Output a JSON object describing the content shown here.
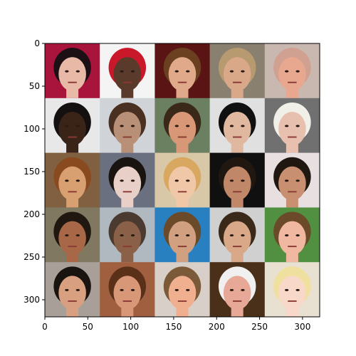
{
  "figure": {
    "background": "#ffffff",
    "axes_color": "#000000"
  },
  "axes": {
    "xlim": [
      0,
      320
    ],
    "ylim": [
      320,
      0
    ],
    "x_ticks": [
      {
        "value": 0,
        "label": "0"
      },
      {
        "value": 50,
        "label": "50"
      },
      {
        "value": 100,
        "label": "100"
      },
      {
        "value": 150,
        "label": "150"
      },
      {
        "value": 200,
        "label": "200"
      },
      {
        "value": 250,
        "label": "250"
      },
      {
        "value": 300,
        "label": "300"
      }
    ],
    "y_ticks": [
      {
        "value": 0,
        "label": "0"
      },
      {
        "value": 50,
        "label": "50"
      },
      {
        "value": 100,
        "label": "100"
      },
      {
        "value": 150,
        "label": "150"
      },
      {
        "value": 200,
        "label": "200"
      },
      {
        "value": 250,
        "label": "250"
      },
      {
        "value": 300,
        "label": "300"
      }
    ]
  },
  "image_grid": {
    "rows": 5,
    "cols": 5,
    "tile_size": 64,
    "tiles": [
      {
        "bg": "#a8143c",
        "face": "#e9b9a8",
        "hair": "#1c1014"
      },
      {
        "bg": "#f4f4f4",
        "face": "#5a3a2a",
        "hair": "#c8182a"
      },
      {
        "bg": "#5a1414",
        "face": "#e0aa8a",
        "hair": "#6a4020"
      },
      {
        "bg": "#8a8070",
        "face": "#d8a888",
        "hair": "#b89a70"
      },
      {
        "bg": "#c8b8b0",
        "face": "#e8a890",
        "hair": "#d0a090"
      },
      {
        "bg": "#e8e8e8",
        "face": "#3a2418",
        "hair": "#141010"
      },
      {
        "bg": "#d0d4d8",
        "face": "#b89078",
        "hair": "#4a3020"
      },
      {
        "bg": "#6a8060",
        "face": "#d89878",
        "hair": "#3a2818"
      },
      {
        "bg": "#e0e0e0",
        "face": "#e0b8a0",
        "hair": "#101010"
      },
      {
        "bg": "#707070",
        "face": "#e8c0b0",
        "hair": "#f0f0e8"
      },
      {
        "bg": "#806040",
        "face": "#d8a070",
        "hair": "#8a4a20"
      },
      {
        "bg": "#6a7080",
        "face": "#e8d0c8",
        "hair": "#1a1410"
      },
      {
        "bg": "#d8c8a8",
        "face": "#f0c8a8",
        "hair": "#d8a860"
      },
      {
        "bg": "#101010",
        "face": "#c08868",
        "hair": "#201810"
      },
      {
        "bg": "#e8e0e0",
        "face": "#c89070",
        "hair": "#201810"
      },
      {
        "bg": "#807860",
        "face": "#a86848",
        "hair": "#201810"
      },
      {
        "bg": "#b0b8c0",
        "face": "#8a6048",
        "hair": "#4a3a30"
      },
      {
        "bg": "#2880c0",
        "face": "#d0a080",
        "hair": "#6a4a28"
      },
      {
        "bg": "#d0d0d0",
        "face": "#d8a888",
        "hair": "#3a2818"
      },
      {
        "bg": "#509040",
        "face": "#f0b8a0",
        "hair": "#6a4a28"
      },
      {
        "bg": "#a8a098",
        "face": "#d8a080",
        "hair": "#1a1410"
      },
      {
        "bg": "#a06040",
        "face": "#d89878",
        "hair": "#5a3018"
      },
      {
        "bg": "#d8d0c8",
        "face": "#f0b090",
        "hair": "#7a5a38"
      },
      {
        "bg": "#4a3018",
        "face": "#e8a898",
        "hair": "#f0f0f0"
      },
      {
        "bg": "#e8e0d0",
        "face": "#f8d8c8",
        "hair": "#f0e0a0"
      }
    ]
  }
}
